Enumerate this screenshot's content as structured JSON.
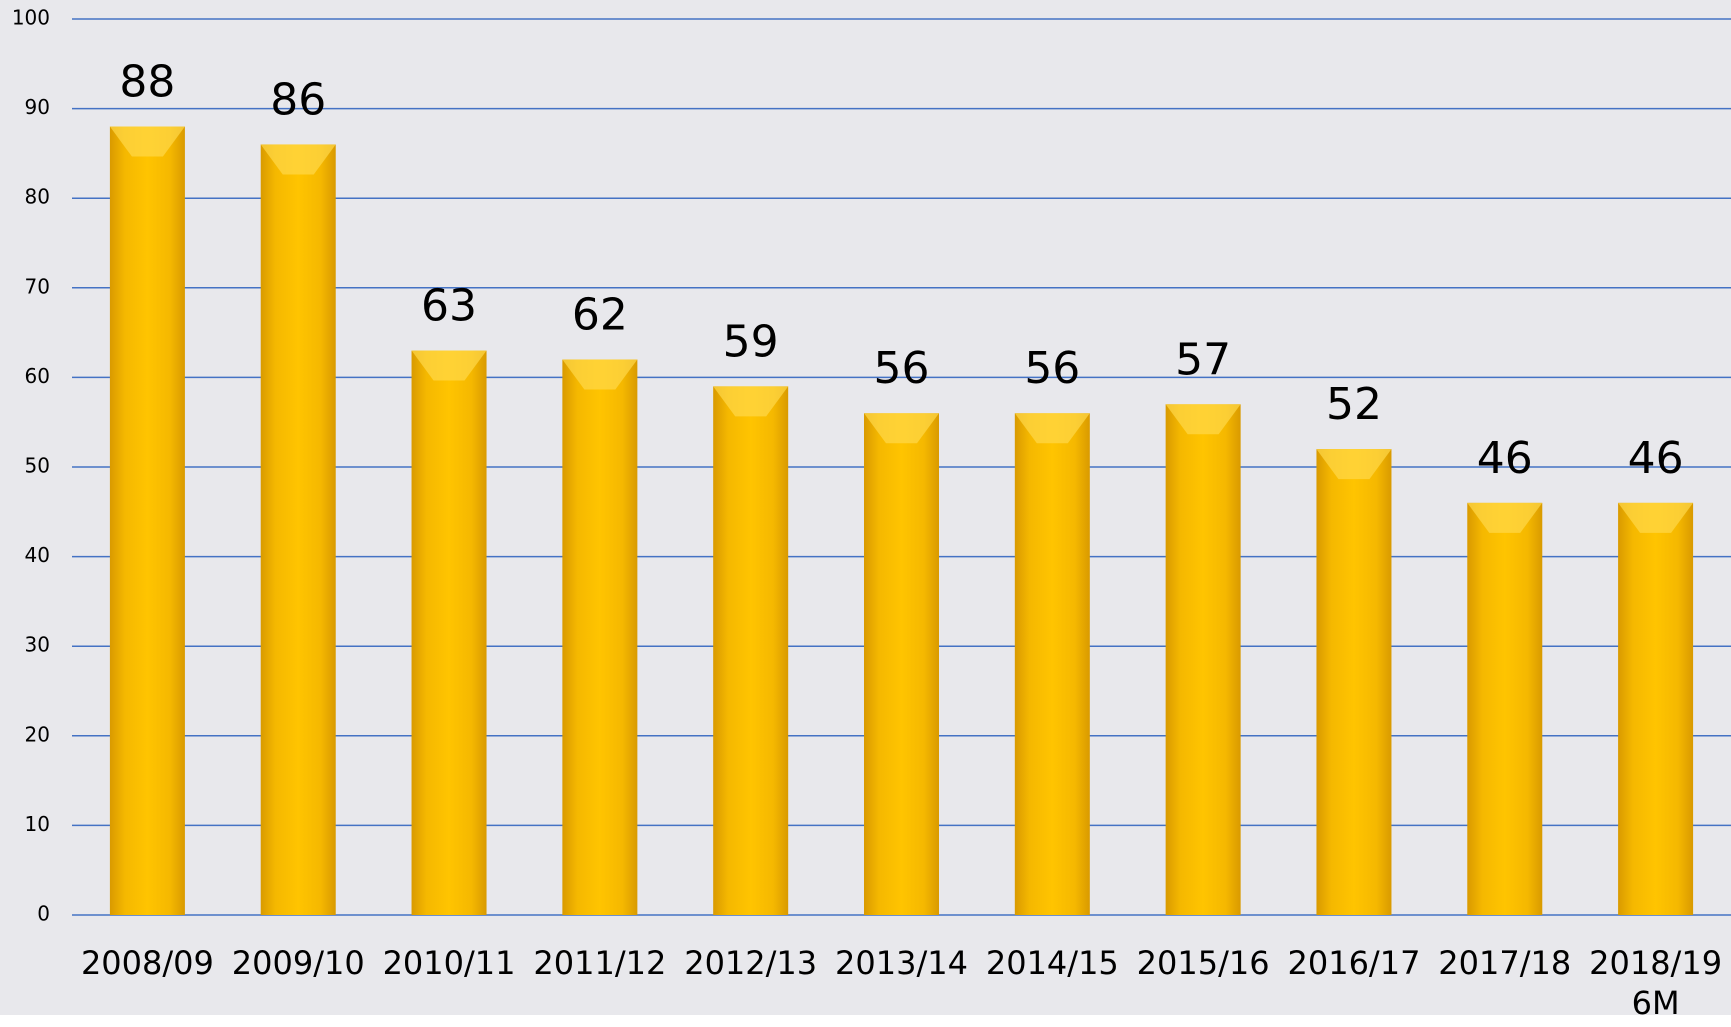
{
  "chart_data": {
    "type": "bar",
    "categories": [
      "2008/09",
      "2009/10",
      "2010/11",
      "2011/12",
      "2012/13",
      "2013/14",
      "2014/15",
      "2015/16",
      "2016/17",
      "2017/18",
      "2018/19\n6M"
    ],
    "values": [
      88,
      86,
      63,
      62,
      59,
      56,
      56,
      57,
      52,
      46,
      46
    ],
    "color": "#ffc000",
    "ylim": [
      0,
      100
    ],
    "yticks": [
      0,
      10,
      20,
      30,
      40,
      50,
      60,
      70,
      80,
      90,
      100
    ],
    "grid": true
  }
}
